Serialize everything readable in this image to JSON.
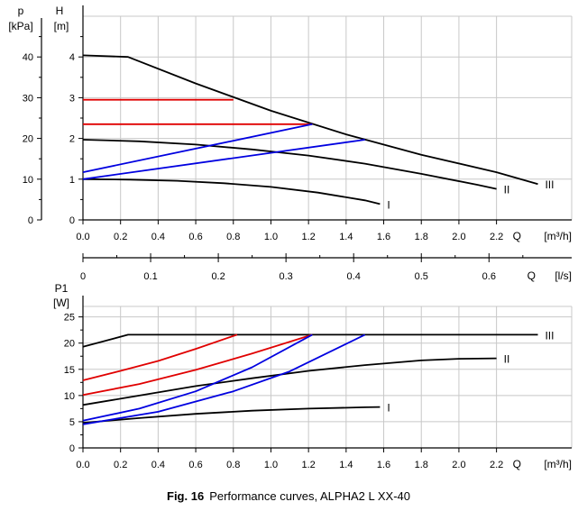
{
  "caption": {
    "prefix": "Fig. 16",
    "text": "Performance curves, ALPHA2 L XX-40"
  },
  "colors": {
    "axis": "#000000",
    "grid": "#c8c8c8",
    "curve": "#000000",
    "red": "#e00000",
    "blue": "#0000e0"
  },
  "chart_data": [
    {
      "id": "head",
      "type": "line",
      "x_axis": {
        "label": "Q",
        "unit": "[m³/h]",
        "min": 0,
        "max": 2.6,
        "ticks": [
          0,
          0.2,
          0.4,
          0.6,
          0.8,
          1.0,
          1.2,
          1.4,
          1.6,
          1.8,
          2.0,
          2.2
        ],
        "tick_labels": [
          "0.0",
          "0.2",
          "0.4",
          "0.6",
          "0.8",
          "1.0",
          "1.2",
          "1.4",
          "1.6",
          "1.8",
          "2.0",
          "2.2"
        ]
      },
      "y_axis": {
        "label": "H",
        "unit": "[m]",
        "min": 0,
        "max": 5,
        "ticks": [
          0,
          1,
          2,
          3,
          4
        ],
        "tick_labels": [
          "0",
          "1",
          "2",
          "3",
          "4"
        ]
      },
      "y_axis_secondary": {
        "label": "p",
        "unit": "[kPa]",
        "min": 0,
        "max": 50,
        "ticks": [
          0,
          10,
          20,
          30,
          40
        ],
        "tick_labels": [
          "0",
          "10",
          "20",
          "30",
          "40"
        ]
      },
      "grid": true,
      "series": [
        {
          "name": "I",
          "color": "black",
          "x": [
            0,
            0.25,
            0.5,
            0.75,
            1.0,
            1.25,
            1.5,
            1.58
          ],
          "y": [
            1.0,
            0.99,
            0.96,
            0.9,
            0.81,
            0.67,
            0.48,
            0.39
          ]
        },
        {
          "name": "II",
          "color": "black",
          "x": [
            0,
            0.3,
            0.6,
            0.9,
            1.2,
            1.5,
            1.8,
            2.1,
            2.2
          ],
          "y": [
            1.97,
            1.93,
            1.85,
            1.73,
            1.58,
            1.38,
            1.13,
            0.86,
            0.76
          ]
        },
        {
          "name": "III",
          "color": "black",
          "x": [
            0,
            0.24,
            0.6,
            1.0,
            1.4,
            1.8,
            2.2,
            2.42
          ],
          "y": [
            4.04,
            4.0,
            3.35,
            2.68,
            2.1,
            1.6,
            1.17,
            0.88
          ]
        },
        {
          "name": "",
          "color": "red",
          "x": [
            0,
            0.8
          ],
          "y": [
            2.95,
            2.95
          ]
        },
        {
          "name": "",
          "color": "red",
          "x": [
            0,
            1.22
          ],
          "y": [
            2.35,
            2.35
          ]
        },
        {
          "name": "",
          "color": "blue",
          "x": [
            0,
            1.22
          ],
          "y": [
            1.17,
            2.35
          ]
        },
        {
          "name": "",
          "color": "blue",
          "x": [
            0,
            1.5
          ],
          "y": [
            1.0,
            1.97
          ]
        }
      ]
    },
    {
      "id": "flow",
      "type": "axis",
      "x_axis": {
        "label": "Q",
        "unit": "[l/s]",
        "min": 0,
        "max": 0.7222,
        "ticks": [
          0,
          0.1,
          0.2,
          0.3,
          0.4,
          0.5,
          0.6
        ],
        "tick_labels": [
          "0",
          "0.1",
          "0.2",
          "0.3",
          "0.4",
          "0.5",
          "0.6"
        ]
      }
    },
    {
      "id": "power",
      "type": "line",
      "x_axis": {
        "label": "Q",
        "unit": "[m³/h]",
        "min": 0,
        "max": 2.6,
        "ticks": [
          0,
          0.2,
          0.4,
          0.6,
          0.8,
          1.0,
          1.2,
          1.4,
          1.6,
          1.8,
          2.0,
          2.2
        ],
        "tick_labels": [
          "0.0",
          "0.2",
          "0.4",
          "0.6",
          "0.8",
          "1.0",
          "1.2",
          "1.4",
          "1.6",
          "1.8",
          "2.0",
          "2.2"
        ]
      },
      "y_axis": {
        "label": "P1",
        "unit": "[W]",
        "min": 0,
        "max": 27,
        "ticks": [
          0,
          5,
          10,
          15,
          20,
          25
        ],
        "tick_labels": [
          "0",
          "5",
          "10",
          "15",
          "20",
          "25"
        ]
      },
      "grid": true,
      "series": [
        {
          "name": "I",
          "color": "black",
          "x": [
            0,
            0.3,
            0.6,
            0.9,
            1.2,
            1.5,
            1.58
          ],
          "y": [
            4.8,
            5.7,
            6.5,
            7.1,
            7.5,
            7.75,
            7.8
          ]
        },
        {
          "name": "II",
          "color": "black",
          "x": [
            0,
            0.3,
            0.6,
            0.9,
            1.2,
            1.5,
            1.8,
            2.0,
            2.2
          ],
          "y": [
            8.2,
            10.0,
            11.8,
            13.3,
            14.7,
            15.8,
            16.7,
            17.0,
            17.1
          ]
        },
        {
          "name": "III",
          "color": "black",
          "x": [
            0,
            0.24,
            0.6,
            1.0,
            1.4,
            1.8,
            2.2,
            2.42
          ],
          "y": [
            19.3,
            21.6,
            21.6,
            21.6,
            21.6,
            21.6,
            21.6,
            21.6
          ]
        },
        {
          "name": "",
          "color": "red",
          "x": [
            0,
            0.2,
            0.4,
            0.6,
            0.82
          ],
          "y": [
            12.9,
            14.7,
            16.6,
            18.9,
            21.6
          ]
        },
        {
          "name": "",
          "color": "red",
          "x": [
            0,
            0.3,
            0.6,
            0.9,
            1.22
          ],
          "y": [
            10.1,
            12.2,
            14.9,
            18.0,
            21.6
          ]
        },
        {
          "name": "",
          "color": "blue",
          "x": [
            0,
            0.3,
            0.6,
            0.9,
            1.22
          ],
          "y": [
            5.2,
            7.5,
            10.8,
            15.4,
            21.6
          ]
        },
        {
          "name": "",
          "color": "blue",
          "x": [
            0,
            0.4,
            0.8,
            1.1,
            1.5
          ],
          "y": [
            4.5,
            6.9,
            10.8,
            14.6,
            21.6
          ]
        }
      ]
    }
  ]
}
